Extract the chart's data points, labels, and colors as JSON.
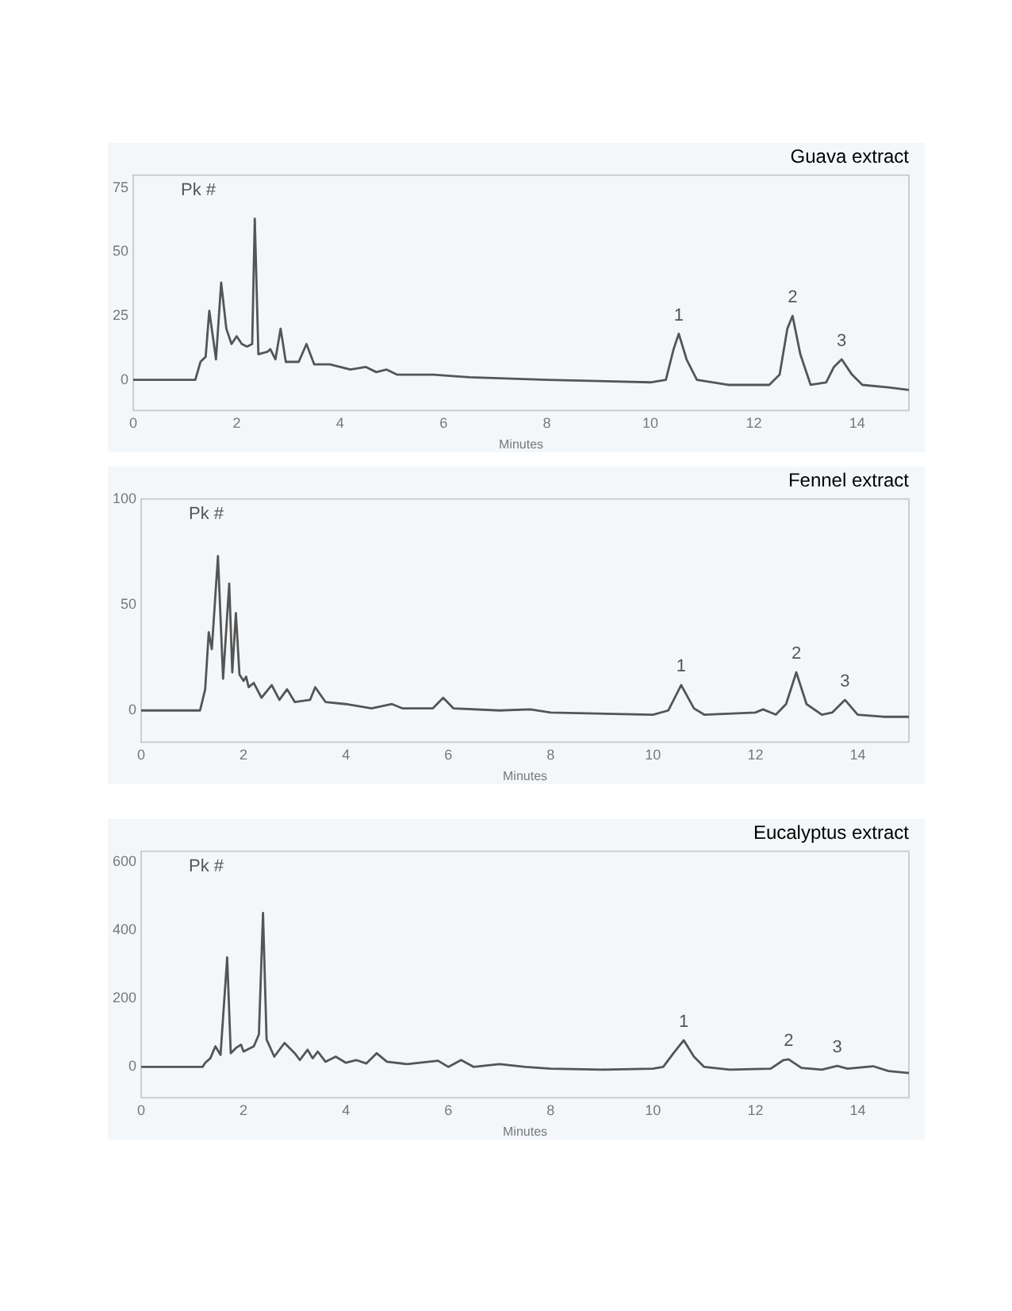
{
  "chart_data": [
    {
      "type": "line",
      "title": "Guava extract",
      "xlabel": "Minutes",
      "marker": "none",
      "xlim": [
        0,
        15
      ],
      "xticks": [
        0,
        2,
        4,
        6,
        8,
        10,
        12,
        14
      ],
      "ylim": [
        -12,
        80
      ],
      "yticks": [
        0,
        25,
        50,
        75
      ],
      "x": [
        0,
        1.2,
        1.3,
        1.4,
        1.47,
        1.6,
        1.7,
        1.8,
        1.9,
        2.0,
        2.1,
        2.2,
        2.3,
        2.35,
        2.42,
        2.6,
        2.65,
        2.75,
        2.85,
        2.95,
        3.2,
        3.35,
        3.5,
        3.8,
        4.2,
        4.5,
        4.7,
        4.9,
        5.1,
        5.8,
        6.5,
        8,
        10,
        10.3,
        10.45,
        10.55,
        10.7,
        10.9,
        11.5,
        12.3,
        12.5,
        12.65,
        12.75,
        12.9,
        13.1,
        13.4,
        13.55,
        13.7,
        13.9,
        14.1,
        14.6,
        15
      ],
      "series": [
        {
          "color": "#555555",
          "values": [
            0,
            0,
            7,
            9,
            27,
            8,
            38,
            20,
            14,
            17,
            14,
            13,
            14,
            63,
            10,
            11,
            12,
            8,
            20,
            7,
            7,
            14,
            6,
            6,
            4,
            5,
            3,
            4,
            2,
            2,
            1,
            0,
            -1,
            0,
            12,
            18,
            8,
            0,
            -2,
            -2,
            2,
            20,
            25,
            10,
            -2,
            -1,
            5,
            8,
            2,
            -2,
            -3,
            -4
          ]
        }
      ],
      "annotations": [
        "Pk #",
        {
          "text": "1",
          "x": 10.55,
          "y": 18
        },
        {
          "text": "2",
          "x": 12.75,
          "y": 25
        },
        {
          "text": "3",
          "x": 13.7,
          "y": 8
        }
      ]
    },
    {
      "type": "line",
      "title": "Fennel extract",
      "xlabel": "Minutes",
      "marker": "none",
      "xlim": [
        0,
        15
      ],
      "xticks": [
        0,
        2,
        4,
        6,
        8,
        10,
        12,
        14
      ],
      "ylim": [
        -15,
        100
      ],
      "yticks": [
        0,
        50,
        100
      ],
      "x": [
        0,
        1.15,
        1.25,
        1.32,
        1.38,
        1.5,
        1.6,
        1.72,
        1.78,
        1.85,
        1.92,
        2.0,
        2.05,
        2.1,
        2.2,
        2.35,
        2.55,
        2.7,
        2.85,
        3.0,
        3.3,
        3.4,
        3.6,
        4.0,
        4.5,
        4.9,
        5.1,
        5.7,
        5.9,
        6.1,
        7,
        7.6,
        8,
        10,
        10.3,
        10.55,
        10.8,
        11,
        12.0,
        12.15,
        12.4,
        12.6,
        12.8,
        13.0,
        13.3,
        13.5,
        13.75,
        14.0,
        14.5,
        15
      ],
      "series": [
        {
          "color": "#555555",
          "values": [
            0,
            0,
            10,
            37,
            29,
            73,
            15,
            60,
            18,
            46,
            17,
            14,
            16,
            11,
            13,
            6,
            12,
            5,
            10,
            4,
            5,
            11,
            4,
            3,
            1,
            3,
            1,
            1,
            6,
            1,
            0,
            0.5,
            -1,
            -2,
            0,
            12,
            1,
            -2,
            -1,
            0.5,
            -2,
            3,
            18,
            3,
            -2,
            -1,
            5,
            -2,
            -3,
            -3
          ]
        }
      ],
      "annotations": [
        "Pk #",
        {
          "text": "1",
          "x": 10.55,
          "y": 12
        },
        {
          "text": "2",
          "x": 12.8,
          "y": 18
        },
        {
          "text": "3",
          "x": 13.75,
          "y": 5
        }
      ]
    },
    {
      "type": "line",
      "title": "Eucalyptus extract",
      "xlabel": "Minutes",
      "marker": "none",
      "xlim": [
        0,
        15
      ],
      "xticks": [
        0,
        2,
        4,
        6,
        8,
        10,
        12,
        14
      ],
      "ylim": [
        -90,
        630
      ],
      "yticks": [
        0,
        200,
        400,
        600
      ],
      "x": [
        0,
        1.2,
        1.25,
        1.35,
        1.45,
        1.55,
        1.68,
        1.75,
        1.85,
        1.95,
        2.0,
        2.2,
        2.3,
        2.38,
        2.45,
        2.6,
        2.8,
        3.0,
        3.1,
        3.25,
        3.35,
        3.45,
        3.6,
        3.8,
        4.0,
        4.2,
        4.4,
        4.6,
        4.8,
        5.2,
        5.8,
        6.0,
        6.25,
        6.5,
        7.0,
        7.5,
        8.0,
        9,
        10,
        10.2,
        10.4,
        10.6,
        10.8,
        11.0,
        11.5,
        12.3,
        12.55,
        12.65,
        12.9,
        13.3,
        13.6,
        13.8,
        14.3,
        14.6,
        15
      ],
      "series": [
        {
          "color": "#555555",
          "values": [
            0,
            0,
            12,
            25,
            60,
            35,
            320,
            40,
            55,
            65,
            45,
            60,
            95,
            450,
            80,
            30,
            70,
            40,
            20,
            50,
            25,
            45,
            15,
            30,
            12,
            20,
            10,
            40,
            15,
            8,
            18,
            0,
            20,
            0,
            8,
            0,
            -5,
            -8,
            -5,
            0,
            40,
            78,
            30,
            0,
            -8,
            -5,
            20,
            22,
            -3,
            -8,
            3,
            -5,
            2,
            -12,
            -18
          ]
        }
      ],
      "annotations": [
        "Pk #",
        {
          "text": "1",
          "x": 10.6,
          "y": 78
        },
        {
          "text": "2",
          "x": 12.65,
          "y": 22
        },
        {
          "text": "3",
          "x": 13.6,
          "y": 3
        }
      ]
    }
  ]
}
